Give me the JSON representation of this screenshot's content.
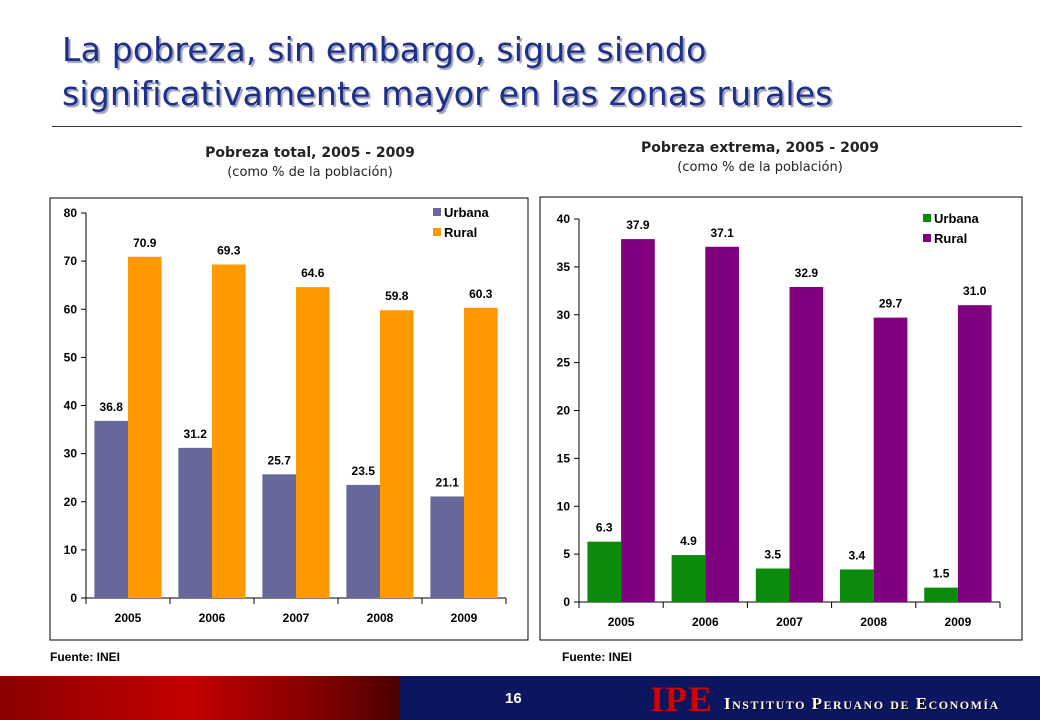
{
  "slide": {
    "title": "La pobreza, sin embargo, sigue siendo significativamente mayor en las zonas rurales",
    "page_number": "16",
    "logo": "IPE",
    "org_name": "Instituto Peruano de Economía"
  },
  "colors": {
    "title": "#1f2f86",
    "urbana_left": "#67679a",
    "rural_left": "#ff9900",
    "urbana_right": "#0b8b0b",
    "rural_right": "#800080"
  },
  "chart_data": [
    {
      "type": "bar",
      "title": "Pobreza total, 2005 - 2009",
      "subtitle": "(como % de la población)",
      "categories": [
        "2005",
        "2006",
        "2007",
        "2008",
        "2009"
      ],
      "series": [
        {
          "name": "Urbana",
          "values": [
            36.8,
            31.2,
            25.7,
            23.5,
            21.1
          ],
          "labels": [
            "36.8",
            "31.2",
            "25.7",
            "23.5",
            "21.1"
          ]
        },
        {
          "name": "Rural",
          "values": [
            70.9,
            69.3,
            64.6,
            59.8,
            60.3
          ],
          "labels": [
            "70.9",
            "69.3",
            "64.6",
            "59.8",
            "60.3"
          ]
        }
      ],
      "ylim": [
        0,
        80
      ],
      "yticks": [
        0,
        10,
        20,
        30,
        40,
        50,
        60,
        70,
        80
      ],
      "legend": "top-right",
      "grid": false,
      "source": "Fuente: INEI"
    },
    {
      "type": "bar",
      "title": "Pobreza extrema, 2005 - 2009",
      "subtitle": "(como % de la población)",
      "categories": [
        "2005",
        "2006",
        "2007",
        "2008",
        "2009"
      ],
      "series": [
        {
          "name": "Urbana",
          "values": [
            6.3,
            4.9,
            3.5,
            3.4,
            1.5
          ],
          "labels": [
            "6.3",
            "4.9",
            "3.5",
            "3.4",
            "1.5"
          ]
        },
        {
          "name": "Rural",
          "values": [
            37.9,
            37.1,
            32.9,
            29.7,
            31.0
          ],
          "labels": [
            "37.9",
            "37.1",
            "32.9",
            "29.7",
            "31.0"
          ]
        }
      ],
      "ylim": [
        0,
        40
      ],
      "yticks": [
        0,
        5,
        10,
        15,
        20,
        25,
        30,
        35,
        40
      ],
      "legend": "top-right",
      "grid": false,
      "source": "Fuente: INEI"
    }
  ]
}
